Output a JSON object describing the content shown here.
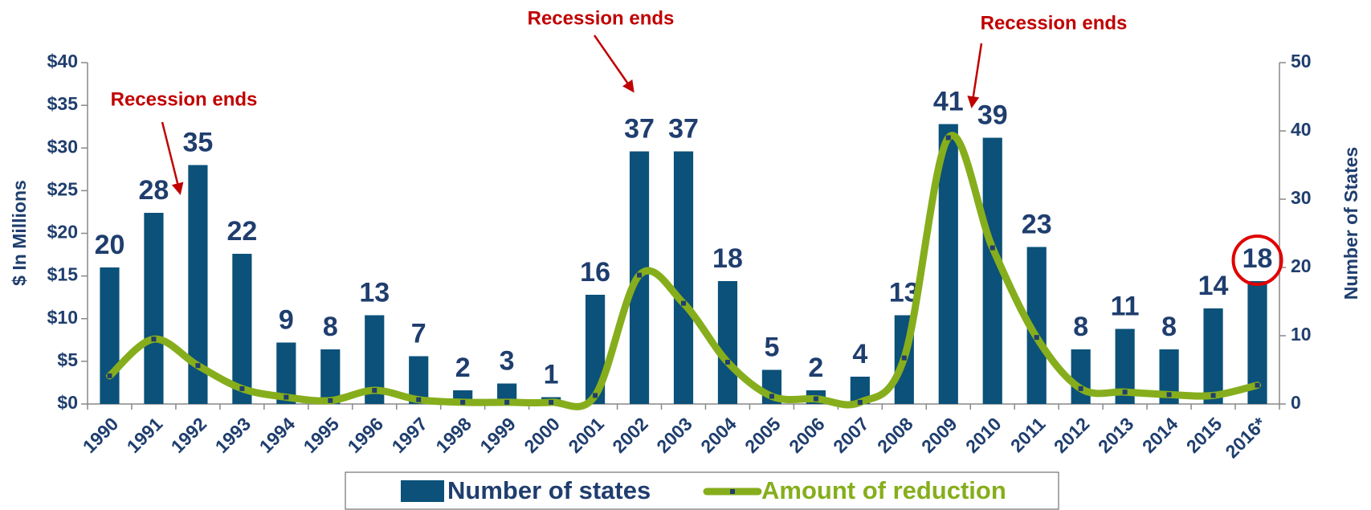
{
  "chart_data": {
    "type": "bar_line",
    "categories": [
      "1990",
      "1991",
      "1992",
      "1993",
      "1994",
      "1995",
      "1996",
      "1997",
      "1998",
      "1999",
      "2000",
      "2001",
      "2002",
      "2003",
      "2004",
      "2005",
      "2006",
      "2007",
      "2008",
      "2009",
      "2010",
      "2011",
      "2012",
      "2013",
      "2014",
      "2015",
      "2016*"
    ],
    "series": [
      {
        "name": "Number of states",
        "color": "#0b5179",
        "type": "bar",
        "axis": "y2",
        "values": [
          20,
          28,
          35,
          22,
          9,
          8,
          13,
          7,
          2,
          3,
          1,
          16,
          37,
          37,
          18,
          5,
          2,
          4,
          13,
          41,
          39,
          23,
          8,
          11,
          8,
          14,
          18
        ]
      },
      {
        "name": "Amount of reduction",
        "color": "#86ae1c",
        "type": "line",
        "axis": "y",
        "values": [
          3.3,
          7.6,
          4.5,
          1.8,
          0.8,
          0.4,
          1.6,
          0.5,
          0.2,
          0.2,
          0.2,
          1.0,
          15.1,
          11.8,
          4.9,
          0.9,
          0.6,
          0.2,
          5.4,
          31.2,
          18.3,
          7.8,
          1.8,
          1.4,
          1.1,
          1.0,
          2.2
        ]
      }
    ],
    "y_label": "$ In Millions",
    "y2_label": "Number of States",
    "ylim": [
      0,
      40
    ],
    "yticks": [
      {
        "value": 0,
        "label": "$0"
      },
      {
        "value": 5,
        "label": "$5"
      },
      {
        "value": 10,
        "label": "$10"
      },
      {
        "value": 15,
        "label": "$15"
      },
      {
        "value": 20,
        "label": "$20"
      },
      {
        "value": 25,
        "label": "$25"
      },
      {
        "value": 30,
        "label": "$30"
      },
      {
        "value": 35,
        "label": "$35"
      },
      {
        "value": 40,
        "label": "$40"
      }
    ],
    "y2lim": [
      0,
      50
    ],
    "y2ticks": [
      0,
      10,
      20,
      30,
      40,
      50
    ],
    "annotations": [
      "Recession ends",
      "Recession ends",
      "Recession ends"
    ],
    "legend": "bottom"
  }
}
